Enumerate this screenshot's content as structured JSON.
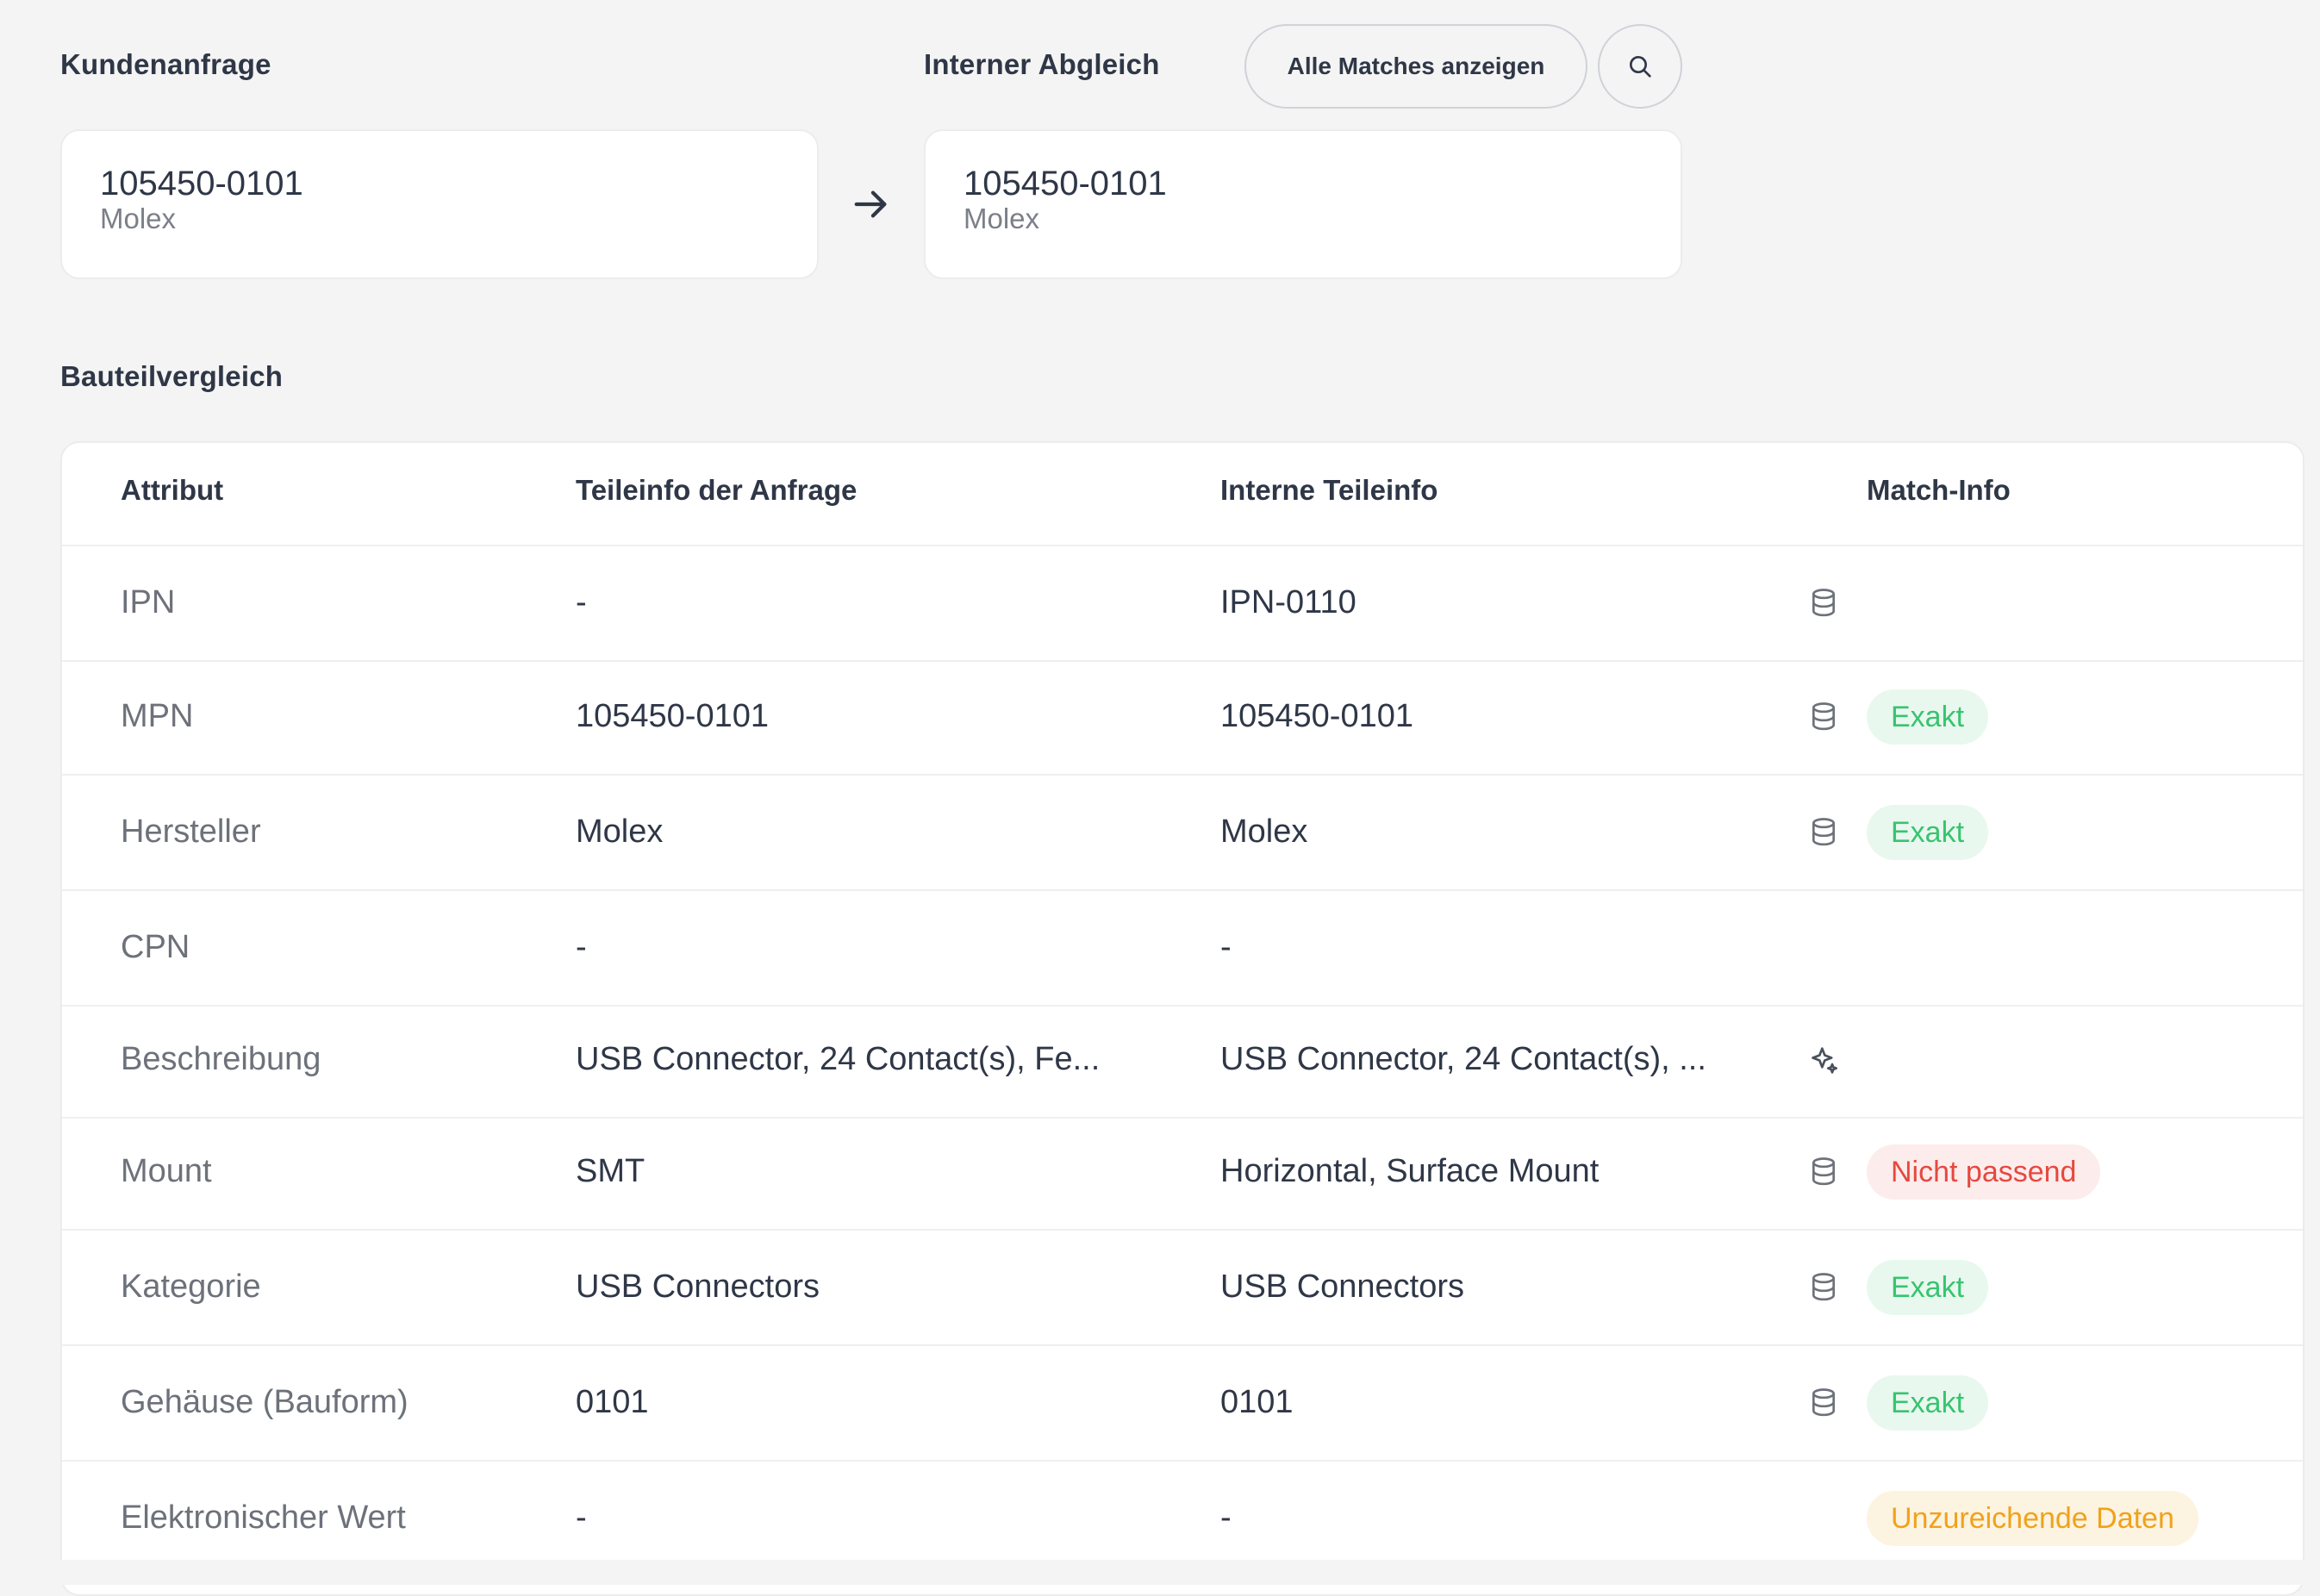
{
  "header": {
    "customer_request_label": "Kundenanfrage",
    "internal_match_label": "Interner Abgleich",
    "show_all_matches_label": "Alle Matches anzeigen",
    "search_icon": "search-icon"
  },
  "customer_part": {
    "number": "105450-0101",
    "manufacturer": "Molex"
  },
  "arrow_icon": "arrow-right-icon",
  "internal_part": {
    "number": "105450-0101",
    "manufacturer": "Molex"
  },
  "comparison": {
    "title": "Bauteilvergleich",
    "columns": {
      "attribute": "Attribut",
      "request_info": "Teileinfo der Anfrage",
      "internal_info": "Interne Teileinfo",
      "match_info": "Match-Info"
    },
    "rows": [
      {
        "attribute": "IPN",
        "request": "-",
        "internal": "IPN-0110",
        "source_icon": "database-icon",
        "match": "",
        "match_status": ""
      },
      {
        "attribute": "MPN",
        "request": "105450-0101",
        "internal": "105450-0101",
        "source_icon": "database-icon",
        "match": "Exakt",
        "match_status": "exakt"
      },
      {
        "attribute": "Hersteller",
        "request": "Molex",
        "internal": "Molex",
        "source_icon": "database-icon",
        "match": "Exakt",
        "match_status": "exakt"
      },
      {
        "attribute": "CPN",
        "request": "-",
        "internal": "-",
        "source_icon": "",
        "match": "",
        "match_status": ""
      },
      {
        "attribute": "Beschreibung",
        "request": "USB Connector, 24 Contact(s), Fe...",
        "internal": "USB Connector, 24 Contact(s), ...",
        "source_icon": "sparkle-icon",
        "match": "",
        "match_status": ""
      },
      {
        "attribute": "Mount",
        "request": "SMT",
        "internal": "Horizontal, Surface Mount",
        "source_icon": "database-icon",
        "match": "Nicht passend",
        "match_status": "nicht"
      },
      {
        "attribute": "Kategorie",
        "request": "USB Connectors",
        "internal": "USB Connectors",
        "source_icon": "database-icon",
        "match": "Exakt",
        "match_status": "exakt"
      },
      {
        "attribute": "Gehäuse (Bauform)",
        "request": "0101",
        "internal": "0101",
        "source_icon": "database-icon",
        "match": "Exakt",
        "match_status": "exakt"
      },
      {
        "attribute": "Elektronischer Wert",
        "request": "-",
        "internal": "-",
        "source_icon": "",
        "match": "Unzureichende Daten",
        "match_status": "unzu"
      }
    ]
  },
  "colors": {
    "background": "#f4f4f4",
    "exakt": "#37c46f",
    "nicht_passend": "#e5493f",
    "unzureichend": "#f0a21b"
  }
}
